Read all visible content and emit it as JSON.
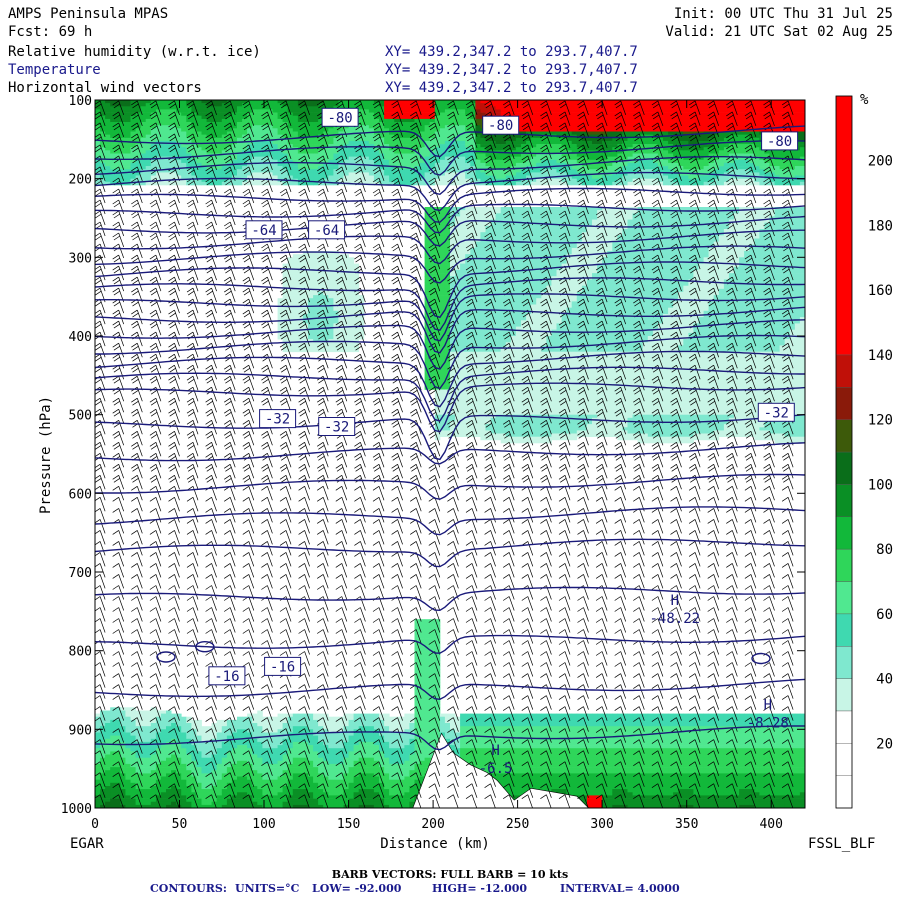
{
  "header": {
    "model": "AMPS Peninsula MPAS",
    "init": "Init: 00 UTC Thu 31 Jul 25",
    "fcst": "Fcst:  69 h",
    "valid": "Valid: 21 UTC Sat 02 Aug 25",
    "fields": [
      {
        "name": "Relative humidity (w.r.t. ice)",
        "xy": "XY= 439.2,347.2 to 293.7,407.7",
        "color": "#000000"
      },
      {
        "name": "Temperature",
        "xy": "XY= 439.2,347.2 to 293.7,407.7",
        "color": "#1a1a8c"
      },
      {
        "name": "Horizontal wind vectors",
        "xy": "XY= 439.2,347.2 to 293.7,407.7",
        "color": "#000000"
      }
    ]
  },
  "chart_data": {
    "type": "heatmap",
    "xlabel": "Distance (km)",
    "ylabel": "Pressure (hPa)",
    "xlim": [
      0,
      420
    ],
    "ylim": [
      1000,
      100
    ],
    "x_ticks": [
      0,
      50,
      100,
      150,
      200,
      250,
      300,
      350,
      400
    ],
    "y_ticks": [
      100,
      200,
      300,
      400,
      500,
      600,
      700,
      800,
      900,
      1000
    ],
    "left_endpoint": "EGAR",
    "right_endpoint": "FSSL_BLF",
    "colorbar": {
      "unit": "%",
      "levels": [
        20,
        40,
        60,
        80,
        100,
        120,
        140,
        160,
        180,
        200
      ],
      "bands": [
        {
          "from": 0,
          "to": 10,
          "color": "#ffffff"
        },
        {
          "from": 10,
          "to": 20,
          "color": "#ffffff"
        },
        {
          "from": 20,
          "to": 30,
          "color": "#ffffff"
        },
        {
          "from": 30,
          "to": 40,
          "color": "#c8f5e6"
        },
        {
          "from": 40,
          "to": 50,
          "color": "#7fe8cf"
        },
        {
          "from": 50,
          "to": 60,
          "color": "#3fd9b0"
        },
        {
          "from": 60,
          "to": 70,
          "color": "#50e890"
        },
        {
          "from": 70,
          "to": 80,
          "color": "#2fd65a"
        },
        {
          "from": 80,
          "to": 90,
          "color": "#12b83a"
        },
        {
          "from": 90,
          "to": 100,
          "color": "#0a8f25"
        },
        {
          "from": 100,
          "to": 110,
          "color": "#0a6e1a"
        },
        {
          "from": 110,
          "to": 120,
          "color": "#3d5a0a"
        },
        {
          "from": 120,
          "to": 130,
          "color": "#8a1a0a"
        },
        {
          "from": 130,
          "to": 140,
          "color": "#c01008"
        },
        {
          "from": 140,
          "to": 220,
          "color": "#ff0000"
        }
      ]
    },
    "temperature_labels": [
      {
        "text": "-80",
        "x": 145,
        "p": 122
      },
      {
        "text": "-80",
        "x": 240,
        "p": 132
      },
      {
        "text": "-80",
        "x": 405,
        "p": 152
      },
      {
        "text": "-64",
        "x": 100,
        "p": 265
      },
      {
        "text": "-64",
        "x": 137,
        "p": 265
      },
      {
        "text": "-32",
        "x": 108,
        "p": 505
      },
      {
        "text": "-32",
        "x": 143,
        "p": 515
      },
      {
        "text": "-32",
        "x": 403,
        "p": 497
      },
      {
        "text": "-16",
        "x": 78,
        "p": 832
      },
      {
        "text": "-16",
        "x": 111,
        "p": 820
      }
    ],
    "extrema": [
      {
        "mark": "H",
        "value": "-48.22",
        "x": 343,
        "p": 757
      },
      {
        "mark": "H",
        "value": "-8.28",
        "x": 398,
        "p": 890
      },
      {
        "mark": "H",
        "value": "-6.5",
        "x": 237,
        "p": 948
      }
    ],
    "humidity_features": {
      "upper_moist_band_p": [
        100,
        200
      ],
      "mid_moist_layer_p": [
        240,
        560
      ],
      "lower_moist_layer_p": [
        860,
        1000
      ],
      "supersaturated_top_right": "red"
    }
  },
  "footer": {
    "barb_note": "BARB VECTORS:  FULL BARB = 10 kts",
    "contours_label": "CONTOURS:",
    "units": "UNITS=°C",
    "low": "LOW= -92.000",
    "high": "HIGH= -12.000",
    "interval": "INTERVAL=   4.0000"
  },
  "colors": {
    "contour": "#1a1a7a",
    "axis": "#000000"
  }
}
